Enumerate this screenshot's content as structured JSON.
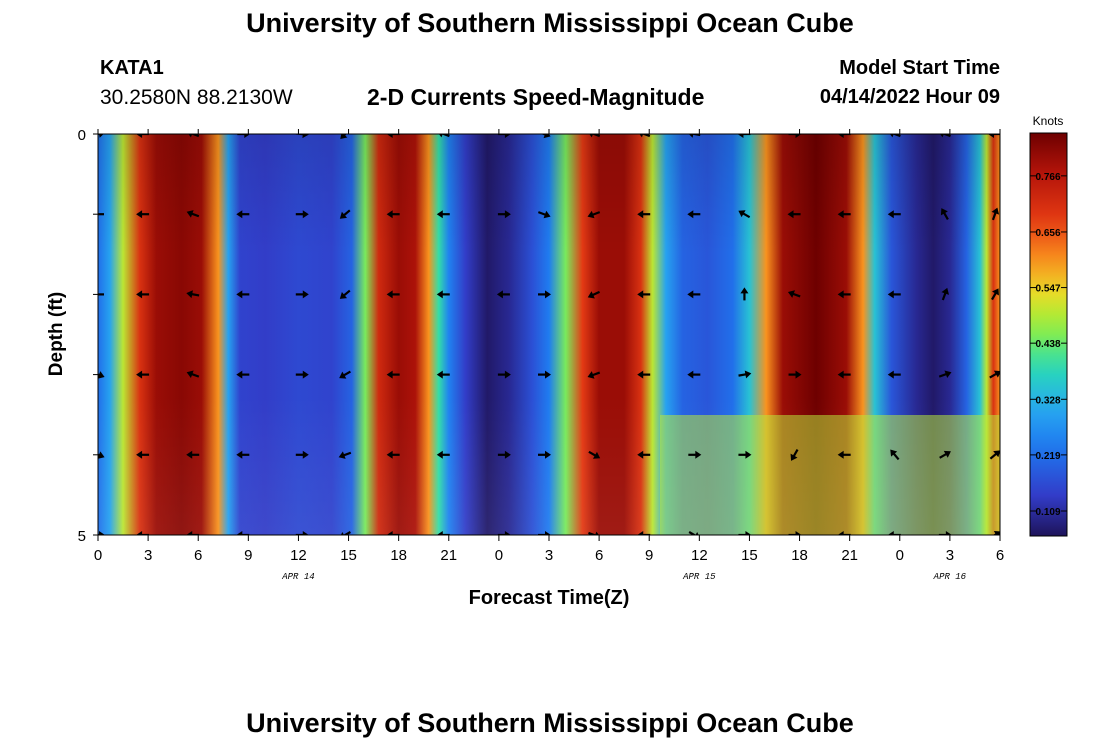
{
  "header": {
    "title": "University of Southern Mississippi Ocean Cube",
    "station": "KATA1",
    "coords": "30.2580N  88.2130W",
    "subtitle": "2-D Currents Speed-Magnitude",
    "start_label": "Model Start Time",
    "start_value": "04/14/2022 Hour 09"
  },
  "footer": {
    "title": "University of Southern Mississippi Ocean Cube"
  },
  "chart_data": {
    "type": "heatmap",
    "title": "2-D Currents Speed-Magnitude",
    "xlabel": "Forecast Time(Z)",
    "ylabel": "Depth (ft)",
    "x_hours": [
      0,
      54
    ],
    "ylim": [
      0,
      5
    ],
    "y_ticks": [
      "0",
      "5"
    ],
    "x_tick_labels": [
      "0",
      "3",
      "6",
      "9",
      "12",
      "15",
      "18",
      "21",
      "0",
      "3",
      "6",
      "9",
      "12",
      "15",
      "18",
      "21",
      "0",
      "3",
      "6"
    ],
    "date_labels": [
      {
        "hour": 12,
        "text": "APR 14"
      },
      {
        "hour": 36,
        "text": "APR 15"
      },
      {
        "hour": 51,
        "text": "APR 16"
      }
    ],
    "colorbar": {
      "title": "Knots",
      "vmin": 0.06,
      "vmax": 0.85,
      "ticks": [
        "0.766",
        "0.656",
        "0.547",
        "0.438",
        "0.328",
        "0.219",
        "0.109"
      ]
    },
    "speed_profile_knots": [
      [
        0,
        0.22
      ],
      [
        0.7,
        0.3
      ],
      [
        1.5,
        0.5
      ],
      [
        2.5,
        0.7
      ],
      [
        3.5,
        0.8
      ],
      [
        5,
        0.82
      ],
      [
        6.2,
        0.8
      ],
      [
        7.2,
        0.6
      ],
      [
        7.8,
        0.3
      ],
      [
        8.5,
        0.15
      ],
      [
        10,
        0.14
      ],
      [
        12,
        0.16
      ],
      [
        14,
        0.15
      ],
      [
        15.2,
        0.2
      ],
      [
        16,
        0.45
      ],
      [
        16.8,
        0.72
      ],
      [
        18,
        0.8
      ],
      [
        19,
        0.78
      ],
      [
        19.8,
        0.6
      ],
      [
        20.4,
        0.4
      ],
      [
        21,
        0.25
      ],
      [
        22,
        0.14
      ],
      [
        23.3,
        0.07
      ],
      [
        24.6,
        0.1
      ],
      [
        26,
        0.17
      ],
      [
        27,
        0.24
      ],
      [
        28,
        0.45
      ],
      [
        29,
        0.68
      ],
      [
        30,
        0.8
      ],
      [
        31.5,
        0.8
      ],
      [
        32.5,
        0.7
      ],
      [
        33.2,
        0.5
      ],
      [
        34,
        0.3
      ],
      [
        35,
        0.2
      ],
      [
        36.5,
        0.18
      ],
      [
        38,
        0.22
      ],
      [
        39,
        0.35
      ],
      [
        40,
        0.6
      ],
      [
        41,
        0.8
      ],
      [
        43,
        0.85
      ],
      [
        44.8,
        0.8
      ],
      [
        45.8,
        0.6
      ],
      [
        46.5,
        0.35
      ],
      [
        47.5,
        0.18
      ],
      [
        49,
        0.1
      ],
      [
        50,
        0.07
      ],
      [
        51,
        0.1
      ],
      [
        52,
        0.2
      ],
      [
        52.8,
        0.35
      ],
      [
        53.2,
        0.5
      ],
      [
        53.6,
        0.7
      ],
      [
        54,
        0.6
      ]
    ],
    "arrow_hours": [
      0,
      2.7,
      5.7,
      8.7,
      12.2,
      14.8,
      17.7,
      20.7,
      24.3,
      26.7,
      29.7,
      32.7,
      35.7,
      38.7,
      41.7,
      44.7,
      47.7,
      50.7,
      53.7
    ],
    "arrow_depths_ft": [
      0,
      1,
      2,
      3,
      4,
      5
    ],
    "arrow_angles_deg": [
      [
        -10,
        180,
        200,
        0,
        5,
        135,
        180,
        200,
        0,
        20,
        200,
        200,
        190,
        180,
        0,
        180,
        200,
        200,
        180
      ],
      [
        180,
        180,
        200,
        180,
        0,
        140,
        180,
        180,
        0,
        20,
        160,
        180,
        180,
        210,
        180,
        180,
        180,
        240,
        290
      ],
      [
        180,
        180,
        190,
        180,
        0,
        140,
        180,
        180,
        180,
        0,
        155,
        180,
        180,
        270,
        200,
        180,
        180,
        290,
        300
      ],
      [
        20,
        180,
        200,
        180,
        0,
        150,
        180,
        180,
        0,
        0,
        160,
        180,
        180,
        350,
        0,
        180,
        180,
        340,
        330
      ],
      [
        20,
        180,
        180,
        180,
        0,
        160,
        180,
        180,
        0,
        0,
        30,
        180,
        0,
        0,
        120,
        180,
        230,
        330,
        320
      ],
      [
        0,
        180,
        180,
        180,
        0,
        150,
        180,
        180,
        0,
        0,
        20,
        180,
        30,
        0,
        0,
        180,
        180,
        0,
        330
      ]
    ]
  }
}
